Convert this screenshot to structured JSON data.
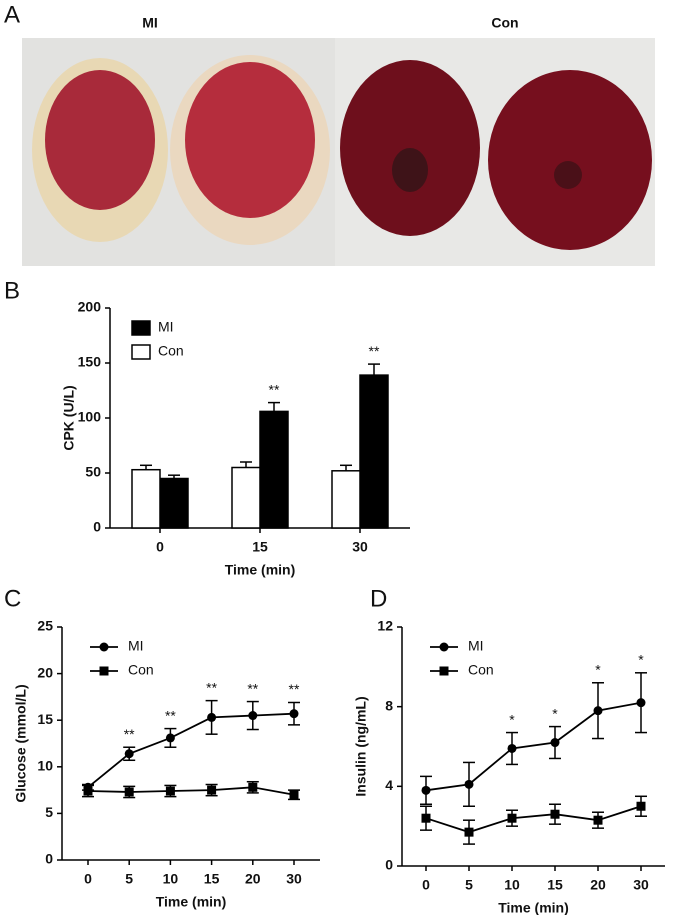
{
  "panel_a": {
    "label": "A",
    "left_label": "MI",
    "right_label": "Con"
  },
  "chart_data": [
    {
      "type": "bar",
      "panel": "B",
      "xlabel": "Time (min)",
      "ylabel": "CPK (U/L)",
      "categories": [
        "0",
        "15",
        "30"
      ],
      "ylim": [
        0,
        200
      ],
      "yticks": [
        0,
        50,
        100,
        150,
        200
      ],
      "legend": "upper left",
      "series": [
        {
          "name": "MI",
          "color": "#000000",
          "values": [
            45,
            106,
            139
          ],
          "errors": [
            3,
            8,
            10
          ],
          "annotations": [
            null,
            "**",
            "**"
          ]
        },
        {
          "name": "Con",
          "color": "#ffffff",
          "values": [
            53,
            55,
            52
          ],
          "errors": [
            4,
            5,
            5
          ],
          "annotations": [
            null,
            null,
            null
          ]
        }
      ]
    },
    {
      "type": "line",
      "panel": "C",
      "xlabel": "Time (min)",
      "ylabel": "Glucose (mmol/L)",
      "categories": [
        "0",
        "5",
        "10",
        "15",
        "20",
        "30"
      ],
      "ylim": [
        0,
        25
      ],
      "yticks": [
        0,
        5,
        10,
        15,
        20,
        25
      ],
      "legend": "upper left",
      "series": [
        {
          "name": "MI",
          "color": "#000000",
          "marker": "circle",
          "values": [
            7.8,
            11.4,
            13.1,
            15.3,
            15.5,
            15.7
          ],
          "errors": [
            0.3,
            0.7,
            1.0,
            1.8,
            1.5,
            1.2
          ],
          "annotations": [
            null,
            "**",
            "**",
            "**",
            "**",
            "**"
          ]
        },
        {
          "name": "Con",
          "color": "#000000",
          "marker": "square",
          "values": [
            7.4,
            7.3,
            7.4,
            7.5,
            7.8,
            7.0
          ],
          "errors": [
            0.6,
            0.6,
            0.6,
            0.6,
            0.6,
            0.5
          ],
          "annotations": [
            null,
            null,
            null,
            null,
            null,
            null
          ]
        }
      ]
    },
    {
      "type": "line",
      "panel": "D",
      "xlabel": "Time (min)",
      "ylabel": "Insulin (ng/mL)",
      "categories": [
        "0",
        "5",
        "10",
        "15",
        "20",
        "30"
      ],
      "ylim": [
        0,
        12
      ],
      "yticks": [
        0,
        4,
        8,
        12
      ],
      "legend": "upper left",
      "series": [
        {
          "name": "MI",
          "color": "#000000",
          "marker": "circle",
          "values": [
            3.8,
            4.1,
            5.9,
            6.2,
            7.8,
            8.2
          ],
          "errors": [
            0.7,
            1.1,
            0.8,
            0.8,
            1.4,
            1.5
          ],
          "annotations": [
            null,
            null,
            "*",
            "*",
            "*",
            "*"
          ]
        },
        {
          "name": "Con",
          "color": "#000000",
          "marker": "square",
          "values": [
            2.4,
            1.7,
            2.4,
            2.6,
            2.3,
            3.0
          ],
          "errors": [
            0.6,
            0.6,
            0.4,
            0.5,
            0.4,
            0.5
          ],
          "annotations": [
            null,
            null,
            null,
            null,
            null,
            null
          ]
        }
      ]
    }
  ]
}
